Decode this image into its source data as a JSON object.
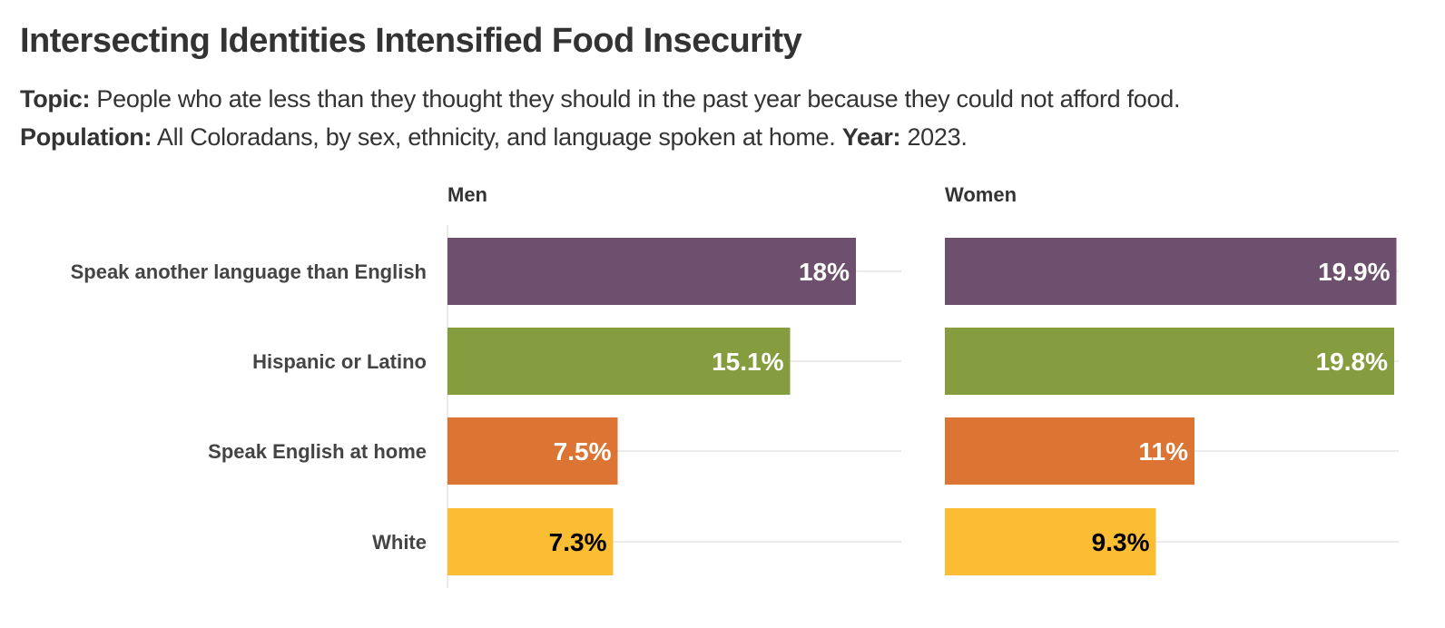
{
  "chart_data": {
    "type": "bar",
    "orientation": "horizontal",
    "title": "Intersecting Identities Intensified Food Insecurity",
    "subtitle": {
      "topic_label": "Topic:",
      "topic_text": "People who ate less than they thought they should in the past year because they could not afford food.",
      "population_label": "Population:",
      "population_text": "All Coloradans, by sex, ethnicity, and language spoken at home.",
      "year_label": "Year:",
      "year_text": "2023."
    },
    "categories": [
      "Speak another language than English",
      "Hispanic or Latino",
      "Speak English at home",
      "White"
    ],
    "bar_colors": [
      "#6d4f6e",
      "#869d3f",
      "#dc7434",
      "#fbbd33"
    ],
    "label_colors": [
      "#ffffff",
      "#ffffff",
      "#ffffff",
      "#000000"
    ],
    "grid_color": "#ebebeb",
    "xlim": [
      0,
      20
    ],
    "panels": [
      {
        "name": "Men",
        "values": [
          18,
          15.1,
          7.5,
          7.3
        ],
        "labels": [
          "18%",
          "15.1%",
          "7.5%",
          "7.3%"
        ]
      },
      {
        "name": "Women",
        "values": [
          19.9,
          19.8,
          11,
          9.3
        ],
        "labels": [
          "19.9%",
          "19.8%",
          "11%",
          "9.3%"
        ]
      }
    ]
  }
}
